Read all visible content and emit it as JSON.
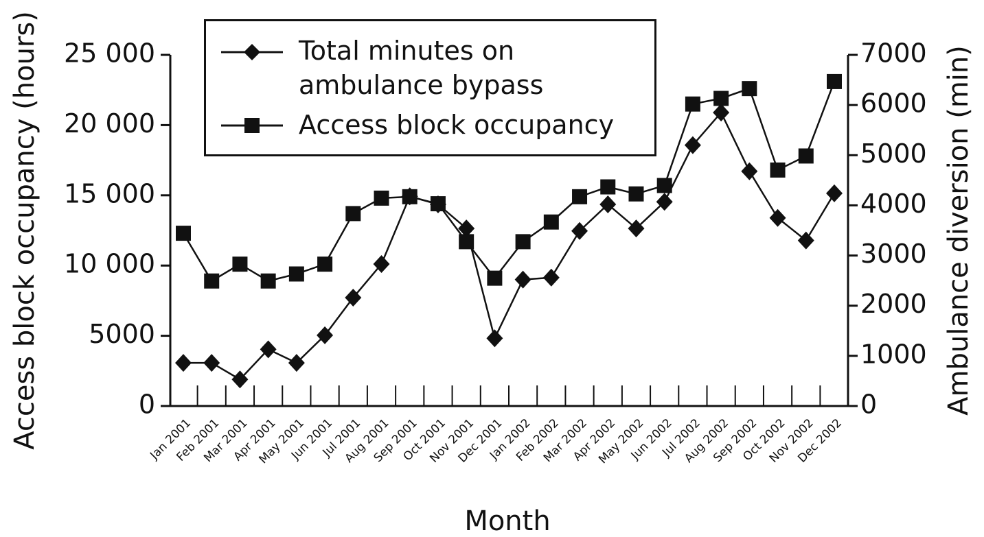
{
  "chart_data": {
    "type": "line",
    "x_label": "Month",
    "y_label": "Access block occupancy (hours)",
    "y2_label": "Ambulance diversion (min)",
    "categories": [
      "Jan 2001",
      "Feb 2001",
      "Mar 2001",
      "Apr 2001",
      "May 2001",
      "Jun 2001",
      "Jul 2001",
      "Aug 2001",
      "Sep 2001",
      "Oct 2001",
      "Nov 2001",
      "Dec 2001",
      "Jan 2002",
      "Feb 2002",
      "Mar 2002",
      "Apr 2002",
      "May 2002",
      "Jun 2002",
      "Jul 2002",
      "Aug 2002",
      "Sep 2002",
      "Oct 2002",
      "Nov 2002",
      "Dec 2002"
    ],
    "series": [
      {
        "name": "Total minutes on ambulance bypass",
        "color": "#111111",
        "marker": "diamond",
        "axis": "y2",
        "values": [
          860,
          860,
          530,
          1130,
          860,
          1410,
          2160,
          2830,
          4180,
          4020,
          3540,
          1350,
          2520,
          2560,
          3490,
          4020,
          3540,
          4070,
          5200,
          5850,
          4680,
          3750,
          3300,
          4240
        ]
      },
      {
        "name": "Access block occupancy",
        "color": "#111111",
        "marker": "square",
        "values": [
          12300,
          8900,
          10100,
          8900,
          9400,
          10100,
          13700,
          14800,
          14900,
          14400,
          11700,
          9100,
          11700,
          13100,
          14900,
          15600,
          15100,
          15700,
          21500,
          21900,
          22600,
          16800,
          17800,
          23100
        ]
      }
    ],
    "ylim": [
      0,
      25000
    ],
    "yticks": [
      0,
      5000,
      {
        "value": 10000,
        "label": "10 000"
      },
      {
        "value": 15000,
        "label": "15 000"
      },
      {
        "value": 20000,
        "label": "20 000"
      },
      {
        "value": 25000,
        "label": "25 000"
      }
    ],
    "y2lim": [
      0,
      7000
    ],
    "y2ticks": [
      0,
      1000,
      2000,
      3000,
      4000,
      5000,
      6000,
      7000
    ],
    "grid": false
  }
}
